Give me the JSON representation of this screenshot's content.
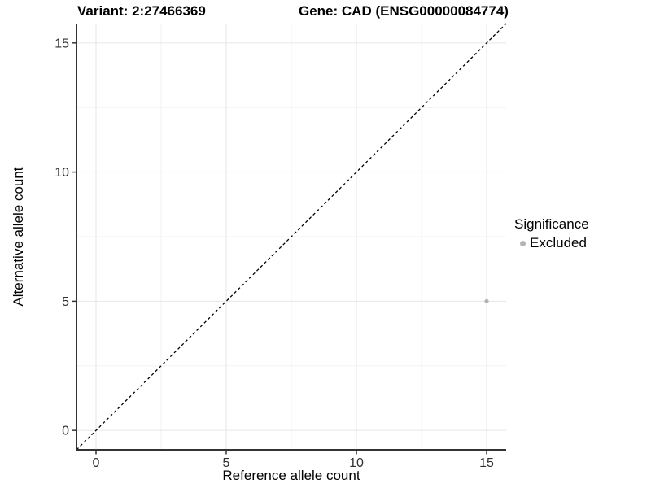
{
  "titles": {
    "variant": "Variant: 2:27466369",
    "gene": "Gene: CAD (ENSG00000084774)"
  },
  "axes": {
    "x": {
      "label": "Reference allele count",
      "tick_labels": [
        "0",
        "5",
        "10",
        "15"
      ]
    },
    "y": {
      "label": "Alternative allele count",
      "tick_labels": [
        "0",
        "5",
        "10",
        "15"
      ]
    }
  },
  "legend": {
    "title": "Significance",
    "items": [
      {
        "label": "Excluded",
        "color": "#b4b4b4"
      }
    ]
  },
  "colors": {
    "background": "#ffffff",
    "grid_major": "#e6e6e6",
    "grid_minor": "#f2f2f2",
    "axis_line": "#333333",
    "tick_mark": "#333333",
    "tick_label": "#303030",
    "identity_line": "#000000",
    "point": "#b4b4b4"
  },
  "chart_data": {
    "type": "scatter",
    "title": "Variant: 2:27466369 — Gene: CAD (ENSG00000084774)",
    "xlabel": "Reference allele count",
    "ylabel": "Alternative allele count",
    "xlim": [
      -0.75,
      15.75
    ],
    "ylim": [
      -0.75,
      15.75
    ],
    "x_ticks": [
      0,
      5,
      10,
      15
    ],
    "y_ticks": [
      0,
      5,
      10,
      15
    ],
    "grid": true,
    "legend_position": "right",
    "series": [
      {
        "name": "Excluded",
        "color": "#b4b4b4",
        "point_radius": 2.6,
        "points": [
          {
            "x": 15,
            "y": 5
          }
        ]
      }
    ],
    "reference_line": {
      "type": "identity",
      "style": "dashed",
      "from": [
        -0.75,
        -0.75
      ],
      "to": [
        15.75,
        15.75
      ]
    }
  }
}
